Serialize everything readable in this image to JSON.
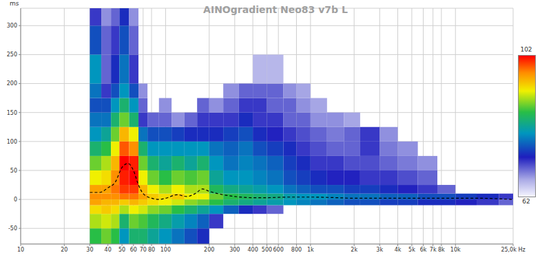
{
  "chart_data": {
    "type": "heatmap",
    "title": "AINOgradient Neo83 v7b L",
    "y_label": "ms",
    "log": "x",
    "grid": true,
    "xlim": [
      10,
      25000
    ],
    "xticks": [
      10,
      20,
      30,
      40,
      50,
      60,
      70,
      80,
      100,
      200,
      300,
      400,
      500,
      600,
      800,
      {
        "value": 1000,
        "label": "1k"
      },
      {
        "value": 2000,
        "label": "2k"
      },
      {
        "value": 3000,
        "label": "3k"
      },
      {
        "value": 4000,
        "label": "4k"
      },
      {
        "value": 5000,
        "label": "5k"
      },
      {
        "value": 6000,
        "label": "6k"
      },
      {
        "value": 7000,
        "label": "7k"
      },
      {
        "value": 8000,
        "label": "8k"
      },
      {
        "value": 10000,
        "label": "10k"
      },
      {
        "value": 25000,
        "label": "25,0k Hz"
      }
    ],
    "ylim": [
      -77,
      330
    ],
    "yticks": [
      -50,
      0,
      50,
      100,
      150,
      200,
      250,
      300
    ],
    "x_edges": [
      30,
      36,
      42,
      48,
      56,
      65,
      75,
      90,
      110,
      135,
      165,
      200,
      250,
      320,
      400,
      500,
      650,
      800,
      1000,
      1300,
      1700,
      2200,
      3000,
      4000,
      5500,
      7500,
      10000,
      14000,
      20000,
      25000
    ],
    "y_edges": [
      -80,
      -50,
      -25,
      -10,
      0,
      10,
      25,
      50,
      75,
      100,
      125,
      150,
      175,
      200,
      250,
      300,
      340
    ],
    "cells": [
      [
        86,
        88,
        86,
        80,
        84,
        84,
        82,
        80,
        78,
        76,
        74,
        null,
        null,
        null,
        null,
        null,
        null,
        null,
        null,
        null,
        null,
        null,
        null,
        null,
        null,
        null,
        null,
        null,
        null
      ],
      [
        90,
        91,
        90,
        84,
        88,
        87,
        85,
        83,
        81,
        79,
        77,
        72,
        null,
        null,
        null,
        null,
        null,
        null,
        null,
        null,
        null,
        null,
        null,
        null,
        null,
        null,
        null,
        null,
        null
      ],
      [
        93,
        94,
        93,
        90,
        92,
        91,
        89,
        88,
        86,
        84,
        82,
        80,
        77,
        74,
        72,
        70,
        null,
        null,
        null,
        null,
        null,
        null,
        null,
        null,
        null,
        null,
        null,
        null,
        null
      ],
      [
        96,
        95,
        95,
        94,
        95,
        94,
        93,
        92,
        91,
        89,
        88,
        86,
        84,
        83,
        82,
        81,
        80,
        79,
        78,
        77,
        76,
        76,
        75,
        75,
        74,
        74,
        73,
        72,
        70
      ],
      [
        97,
        97,
        97,
        98,
        98,
        96,
        94,
        93,
        94,
        92,
        92,
        88,
        86,
        85,
        84,
        83,
        81,
        80,
        80,
        79,
        78,
        78,
        77,
        77,
        76,
        76,
        75,
        74,
        72
      ],
      [
        96,
        96,
        98,
        100,
        100,
        95,
        92,
        90,
        92,
        90,
        90,
        85,
        83,
        82,
        81,
        80,
        78,
        77,
        76,
        76,
        75,
        75,
        74,
        73,
        72,
        70,
        null,
        null,
        null
      ],
      [
        92,
        93,
        97,
        101,
        102,
        92,
        88,
        86,
        88,
        87,
        88,
        82,
        80,
        80,
        79,
        78,
        76,
        75,
        74,
        73,
        73,
        72,
        72,
        71,
        70,
        null,
        null,
        null,
        null
      ],
      [
        88,
        90,
        95,
        102,
        101,
        88,
        84,
        82,
        84,
        82,
        84,
        80,
        78,
        79,
        78,
        77,
        75,
        74,
        72,
        72,
        71,
        71,
        70,
        69,
        68,
        null,
        null,
        null,
        null
      ],
      [
        84,
        86,
        92,
        99,
        97,
        84,
        80,
        80,
        80,
        80,
        80,
        78,
        77,
        78,
        76,
        75,
        74,
        72,
        71,
        70,
        70,
        72,
        69,
        68,
        null,
        null,
        null,
        null,
        null
      ],
      [
        80,
        82,
        88,
        95,
        92,
        78,
        76,
        76,
        75,
        74,
        74,
        74,
        75,
        76,
        74,
        73,
        72,
        71,
        70,
        69,
        70,
        72,
        68,
        null,
        null,
        null,
        null,
        null,
        null
      ],
      [
        78,
        78,
        84,
        88,
        84,
        72,
        70,
        70,
        68,
        70,
        72,
        72,
        72,
        74,
        72,
        72,
        70,
        70,
        68,
        68,
        67,
        null,
        null,
        null,
        null,
        null,
        null,
        null,
        null
      ],
      [
        76,
        76,
        80,
        84,
        80,
        70,
        null,
        68,
        null,
        null,
        70,
        68,
        70,
        72,
        72,
        70,
        70,
        68,
        67,
        null,
        null,
        null,
        null,
        null,
        null,
        null,
        null,
        null,
        null
      ],
      [
        78,
        72,
        76,
        80,
        76,
        68,
        null,
        null,
        null,
        null,
        null,
        null,
        68,
        70,
        70,
        70,
        68,
        67,
        null,
        null,
        null,
        null,
        null,
        null,
        null,
        null,
        null,
        null,
        null
      ],
      [
        80,
        70,
        74,
        78,
        72,
        null,
        null,
        null,
        null,
        null,
        null,
        null,
        null,
        null,
        66,
        66,
        null,
        null,
        null,
        null,
        null,
        null,
        null,
        null,
        null,
        null,
        null,
        null,
        null
      ],
      [
        76,
        70,
        72,
        76,
        70,
        null,
        null,
        null,
        null,
        null,
        null,
        null,
        null,
        null,
        null,
        null,
        null,
        null,
        null,
        null,
        null,
        null,
        null,
        null,
        null,
        null,
        null,
        null,
        null
      ],
      [
        72,
        68,
        70,
        74,
        68,
        null,
        null,
        null,
        null,
        null,
        null,
        null,
        null,
        null,
        null,
        null,
        null,
        null,
        null,
        null,
        null,
        null,
        null,
        null,
        null,
        null,
        null,
        null,
        null
      ]
    ],
    "colorbar": {
      "range": [
        62,
        102
      ],
      "ticks": [
        62,
        102
      ]
    },
    "series": [
      {
        "color": "#000000",
        "line_style": "dashed",
        "x": [
          30,
          35,
          40,
          45,
          50,
          55,
          60,
          65,
          70,
          80,
          90,
          100,
          120,
          140,
          160,
          180,
          200,
          250,
          300,
          400,
          500,
          700,
          1000,
          1500,
          2000,
          3000,
          5000,
          8000,
          10000,
          15000,
          20000,
          25000
        ],
        "values": [
          12,
          12,
          20,
          30,
          55,
          62,
          50,
          25,
          10,
          2,
          0,
          2,
          8,
          5,
          10,
          18,
          14,
          8,
          5,
          3,
          3,
          4,
          4,
          3,
          2,
          2,
          2,
          2,
          2,
          2,
          1,
          0
        ]
      }
    ]
  }
}
